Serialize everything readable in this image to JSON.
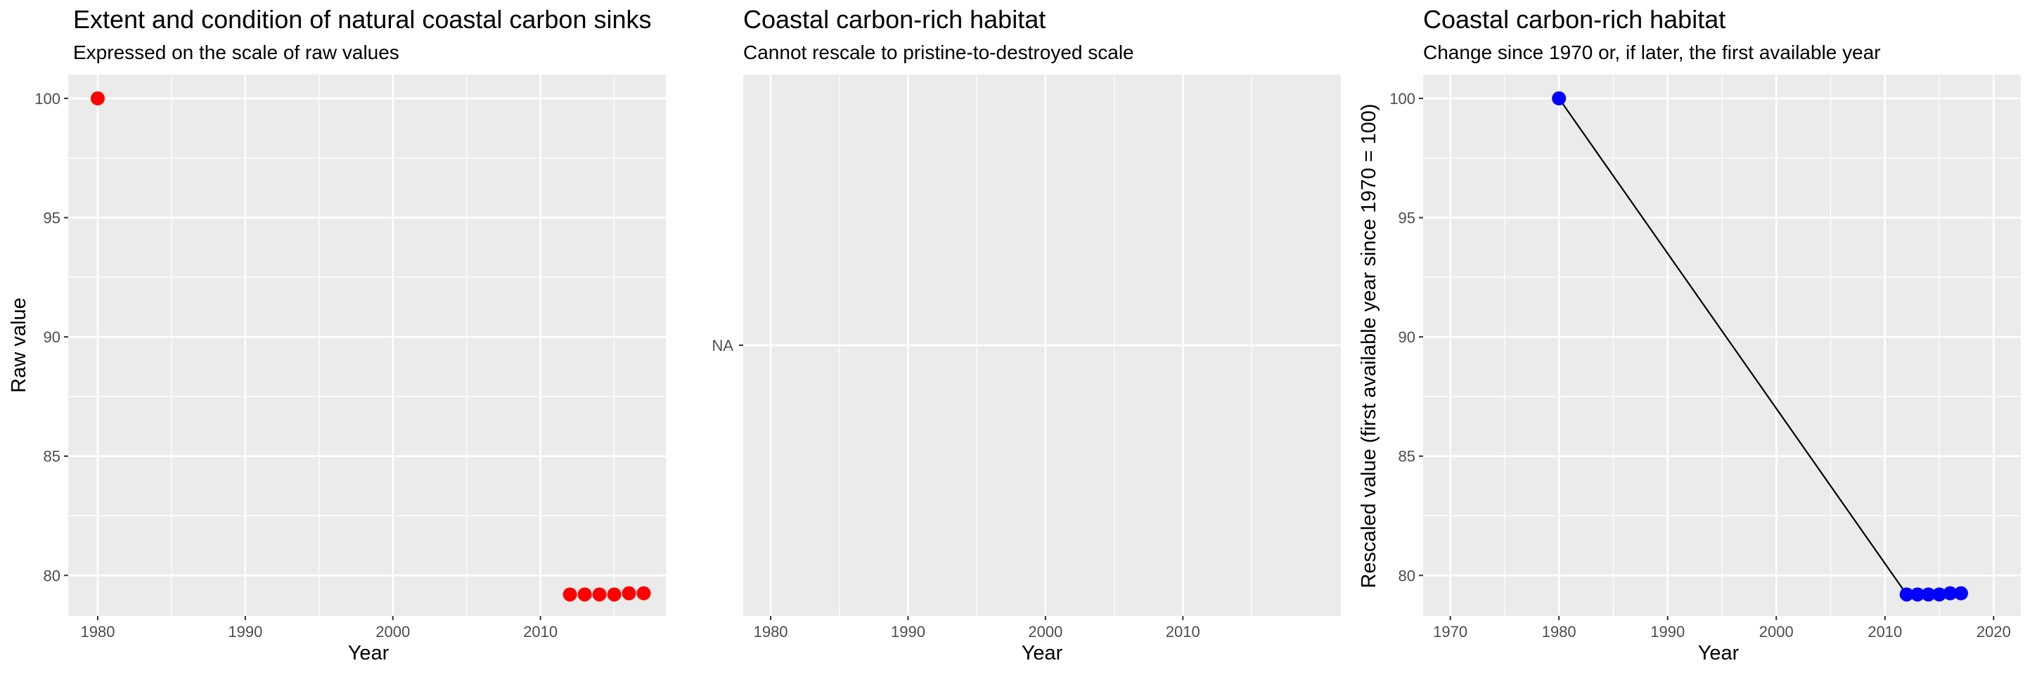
{
  "chart_data": [
    {
      "type": "scatter",
      "title": "Extent and condition of natural coastal carbon sinks",
      "subtitle": "Expressed on the scale of raw values",
      "xlabel": "Year",
      "ylabel": "Raw value",
      "xlim": [
        1978,
        2018.5
      ],
      "ylim": [
        78.3,
        101
      ],
      "x_ticks": [
        1980,
        1990,
        2000,
        2010
      ],
      "x_ticks_minor": [
        1985,
        1995,
        2005,
        2015
      ],
      "y_ticks": [
        80,
        85,
        90,
        95,
        100
      ],
      "y_ticks_minor": [
        82.5,
        87.5,
        92.5,
        97.5
      ],
      "grid": true,
      "series": [
        {
          "color": "#ff0000",
          "connect": false,
          "points": [
            {
              "x": 1980,
              "y": 100
            },
            {
              "x": 2012,
              "y": 79.2
            },
            {
              "x": 2013,
              "y": 79.2
            },
            {
              "x": 2014,
              "y": 79.2
            },
            {
              "x": 2015,
              "y": 79.2
            },
            {
              "x": 2016,
              "y": 79.25
            },
            {
              "x": 2017,
              "y": 79.25
            }
          ]
        }
      ]
    },
    {
      "type": "scatter",
      "title": "Coastal carbon-rich habitat",
      "subtitle": "Cannot rescale to pristine-to-destroyed scale",
      "xlabel": "Year",
      "ylabel": "",
      "xlim": [
        1978,
        2021.5
      ],
      "x_ticks": [
        1980,
        1990,
        2000,
        2010
      ],
      "x_ticks_minor": [
        1985,
        1995,
        2005,
        2015
      ],
      "y_categories": [
        "NA"
      ],
      "grid": true,
      "series": []
    },
    {
      "type": "line",
      "title": "Coastal carbon-rich habitat",
      "subtitle": "Change since 1970 or, if later, the first available year",
      "xlabel": "Year",
      "ylabel": "Rescaled value (first available year since 1970 = 100)",
      "xlim": [
        1967.5,
        2022.5
      ],
      "ylim": [
        78.3,
        101
      ],
      "x_ticks": [
        1970,
        1980,
        1990,
        2000,
        2010,
        2020
      ],
      "x_ticks_minor": [
        1975,
        1985,
        1995,
        2005,
        2015
      ],
      "y_ticks": [
        80,
        85,
        90,
        95,
        100
      ],
      "y_ticks_minor": [
        82.5,
        87.5,
        92.5,
        97.5
      ],
      "grid": true,
      "series": [
        {
          "color": "#0000ff",
          "line_color": "#000000",
          "connect": true,
          "points": [
            {
              "x": 1980,
              "y": 100
            },
            {
              "x": 2012,
              "y": 79.2
            },
            {
              "x": 2013,
              "y": 79.2
            },
            {
              "x": 2014,
              "y": 79.2
            },
            {
              "x": 2015,
              "y": 79.2
            },
            {
              "x": 2016,
              "y": 79.25
            },
            {
              "x": 2017,
              "y": 79.25
            }
          ]
        }
      ]
    }
  ]
}
